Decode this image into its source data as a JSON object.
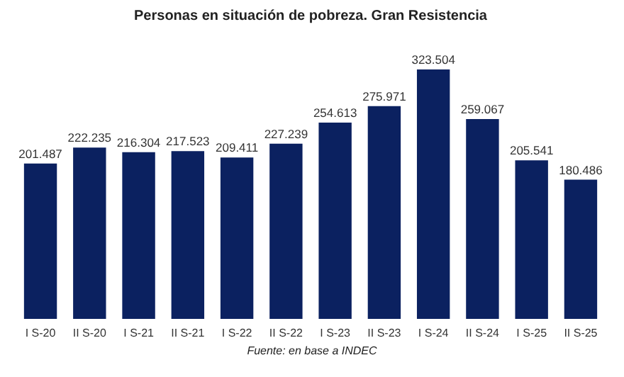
{
  "chart_data": {
    "type": "bar",
    "title": "Personas en situación de pobreza. Gran Resistencia",
    "categories": [
      "I S-20",
      "II S-20",
      "I S-21",
      "II S-21",
      "I S-22",
      "II S-22",
      "I S-23",
      "II S-23",
      "I S-24",
      "II S-24",
      "I S-25",
      "II S-25"
    ],
    "values": [
      201487,
      222235,
      216304,
      217523,
      209411,
      227239,
      254613,
      275971,
      323504,
      259067,
      205541,
      180486
    ],
    "value_labels": [
      "201.487",
      "222.235",
      "216.304",
      "217.523",
      "209.411",
      "227.239",
      "254.613",
      "275.971",
      "323.504",
      "259.067",
      "205.541",
      "180.486"
    ],
    "color": "#0b2160",
    "tick_labels": "x",
    "annotations": [
      "Fuente: en base a INDEC"
    ]
  }
}
